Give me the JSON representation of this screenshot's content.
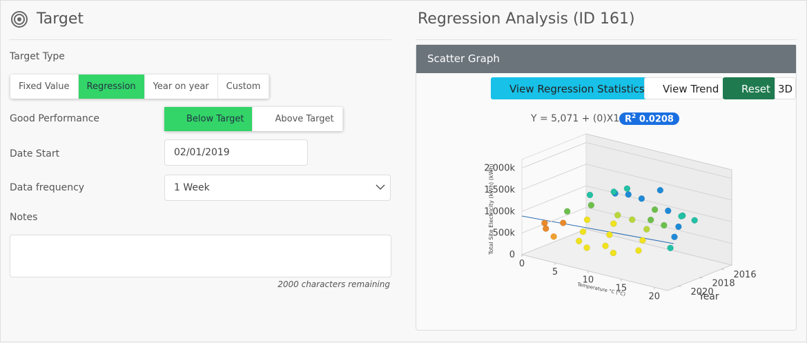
{
  "target_panel": {
    "title": "Target",
    "target_type_label": "Target Type",
    "target_type_options": [
      "Fixed Value",
      "Regression",
      "Year on year",
      "Custom"
    ],
    "good_performance_label": "Good Performance",
    "performance_options": [
      "Below Target",
      "Above Target"
    ],
    "date_start_label": "Date Start",
    "date_start_value": "02/01/2019",
    "data_frequency_label": "Data frequency",
    "data_frequency_value": "1 Week",
    "notes_label": "Notes",
    "notes_hint": "2000 characters remaining"
  },
  "analysis_panel": {
    "title": "Regression Analysis (ID 161)",
    "card_title": "Scatter Graph",
    "buttons": [
      "View Regression Statistics",
      "View Trend",
      "Reset",
      "3D"
    ],
    "equation": "Y = 5,071 + (0)X1",
    "r2_label": "R",
    "r2_sup": "2",
    "r2_value": "0.0208"
  },
  "chart_data": {
    "type": "scatter3d",
    "y_label": "Total Site Electricity (kWh) (kWh)",
    "x_label": "Temperature °C (°C)",
    "z_label": "Year",
    "xlim": [
      0,
      22
    ],
    "xticks": [
      0,
      5,
      10,
      15,
      20
    ],
    "zlim": [
      2015,
      2021
    ],
    "zticks": [
      2016,
      2018,
      2020
    ],
    "ylim": [
      0,
      2200000
    ],
    "yticks": [
      0,
      {
        "value": 500000,
        "label": "500k"
      },
      {
        "value": 1000000,
        "label": "1,000k"
      },
      {
        "value": 1500000,
        "label": "1,500k"
      },
      {
        "value": 2000000,
        "label": "2,000k"
      }
    ],
    "x": [
      1,
      2,
      3,
      4,
      5,
      6,
      7,
      8,
      9,
      10,
      11,
      12,
      13,
      14,
      15,
      16,
      17,
      18,
      19,
      20,
      6,
      8,
      10,
      12,
      4,
      3,
      7,
      14,
      16,
      9,
      13,
      2,
      15,
      11,
      5,
      18
    ],
    "z": [
      2019.5,
      2020,
      2019,
      2020.5,
      2018,
      2019,
      2020,
      2017,
      2018,
      2019,
      2020,
      2016,
      2017,
      2018,
      2019,
      2020,
      2016.5,
      2017.5,
      2018.5,
      2019.5,
      2016,
      2016,
      2016,
      2015.5,
      2017,
      2016.5,
      2015.5,
      2016,
      2016,
      2020.5,
      2020.5,
      2018,
      2017,
      2017.5,
      2015.5,
      2016
    ],
    "y": [
      620000,
      580000,
      650000,
      520000,
      700000,
      560000,
      480000,
      820000,
      760000,
      640000,
      520000,
      1000000,
      900000,
      820000,
      700000,
      600000,
      1100000,
      980000,
      880000,
      760000,
      1150000,
      1200000,
      1180000,
      1400000,
      900000,
      1050000,
      1250000,
      1050000,
      1000000,
      450000,
      480000,
      780000,
      850000,
      880000,
      1100000,
      980000
    ],
    "colors": [
      "#e8892b",
      "#e8892b",
      "#e8892b",
      "#f0a030",
      "#f0e21e",
      "#f0e21e",
      "#f0e21e",
      "#b9d63a",
      "#f0e21e",
      "#f0e21e",
      "#f0e21e",
      "#6cbf4b",
      "#6cbf4b",
      "#b9d63a",
      "#f0e21e",
      "#f0e21e",
      "#22c0a5",
      "#1e8ad6",
      "#1e8ad6",
      "#22c0a5",
      "#1e8ad6",
      "#1e8ad6",
      "#1e8ad6",
      "#1e8ad6",
      "#6cbf4b",
      "#22c0a5",
      "#22c0a5",
      "#1e8ad6",
      "#22c0a5",
      "#f0e21e",
      "#f0e21e",
      "#6cbf4b",
      "#6cbf4b",
      "#b9d63a",
      "#22c0a5",
      "#22c0a5"
    ]
  }
}
